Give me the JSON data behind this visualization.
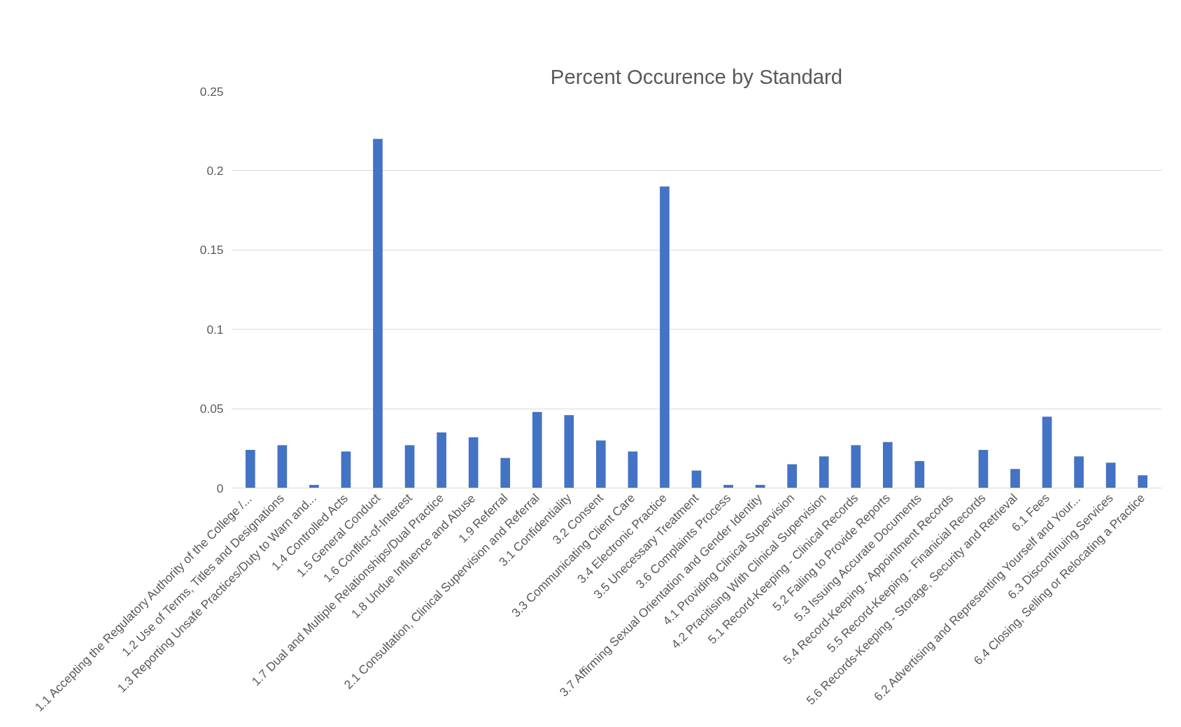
{
  "chart_data": {
    "type": "bar",
    "title": "Percent Occurence by Standard",
    "categories": [
      "1.1 Accepting the Regulatory Authority of the College /...",
      "1.2 Use of Terms, Titles and Designations",
      "1.3 Reporting Unsafe Practices/Duty to Warn and...",
      "1.4 Controlled Acts",
      "1.5 General Conduct",
      "1.6 Conflict-of-Interest",
      "1.7 Dual and Multiple Relationships/Dual Practice",
      "1.8 Undue Influence and Abuse",
      "1.9 Referral",
      "2.1 Consultation, Clinical Supervision and Referral",
      "3.1 Confidentiality",
      "3.2 Consent",
      "3.3 Communicating Client Care",
      "3.4 Electronic Practice",
      "3.5 Unecessary Treatment",
      "3.6 Complaints Process",
      "3.7 Affirming Sexual Orientation and Gender Identity",
      "4.1 Providing Clinical Supervision",
      "4.2 Pracitising With Clinical Supervision",
      "5.1 Record-Keeping - Clinical Records",
      "5.2 Failing to Provide Reports",
      "5.3 Issuing Accurate Documents",
      "5.4 Record-Keeping - Appointment Records",
      "5.5 Record-Keeping - Finanicial Records",
      "5.6 Records-Keeping - Storage, Security and Retrieval",
      "6.1 Fees",
      "6.2 Advertising and Representing Yourself and Your...",
      "6.3 Discontinuing Services",
      "6.4 Closing, Selling or Relocating a Practice"
    ],
    "values": [
      0.024,
      0.027,
      0.002,
      0.023,
      0.22,
      0.027,
      0.035,
      0.032,
      0.019,
      0.048,
      0.046,
      0.03,
      0.023,
      0.19,
      0.011,
      0.002,
      0.002,
      0.015,
      0.02,
      0.027,
      0.029,
      0.017,
      0,
      0.024,
      0.012,
      0.045,
      0.02,
      0.016,
      0.008
    ],
    "color": "#4472c4",
    "ylim": [
      0,
      0.25
    ],
    "yticks": [
      {
        "value": 0,
        "label": "0"
      },
      0.05,
      0.1,
      0.15,
      0.2,
      0.25
    ],
    "grid": "y"
  }
}
